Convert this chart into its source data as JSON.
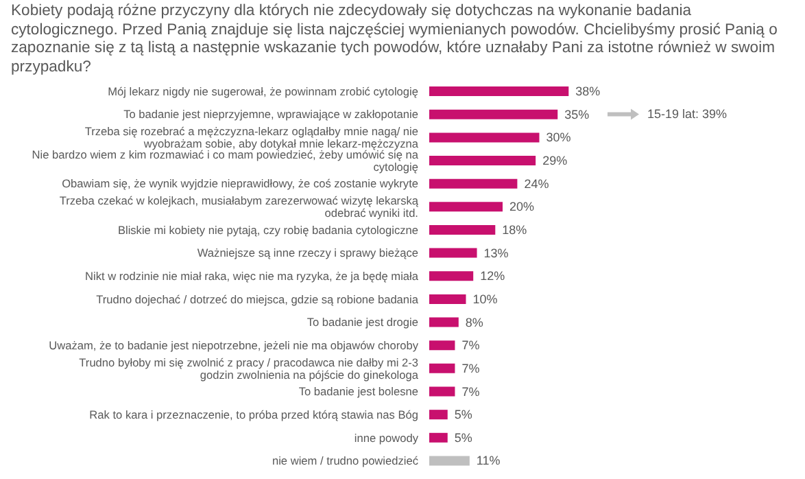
{
  "chart_data": {
    "type": "bar",
    "orientation": "horizontal",
    "title": "Kobiety podają różne przyczyny dla których nie zdecydowały się dotychczas na wykonanie badania cytologicznego. Przed Panią znajduje się lista najczęściej wymienianych powodów. Chcielibyśmy prosić Panią o zapoznanie się z tą listą a następnie wskazanie tych powodów, które uznałaby Pani za istotne również w swoim przypadku?",
    "categories": [
      "Mój lekarz nigdy nie sugerował, że powinnam zrobić cytologię",
      "To badanie jest nieprzyjemne, wprawiające w zakłopotanie",
      "Trzeba się rozebrać a mężczyzna-lekarz oglądałby mnie nagą/ nie wyobrażam sobie, aby dotykał mnie lekarz-mężczyzna",
      "Nie bardzo wiem z kim rozmawiać i co mam powiedzieć, żeby umówić się na cytologię",
      "Obawiam się, że wynik wyjdzie nieprawidłowy, że coś zostanie wykryte",
      "Trzeba czekać w kolejkach, musiałabym zarezerwować wizytę lekarską odebrać wyniki itd.",
      "Bliskie mi kobiety nie pytają, czy robię badania cytologiczne",
      "Ważniejsze są inne rzeczy i sprawy bieżące",
      "Nikt w rodzinie nie miał raka, więc nie ma ryzyka, że ja będę miała",
      "Trudno dojechać / dotrzeć do miejsca, gdzie są robione badania",
      "To badanie jest drogie",
      "Uważam, że to badanie jest niepotrzebne, jeżeli nie ma objawów choroby",
      "Trudno byłoby mi się zwolnić z pracy / pracodawca nie dałby mi 2-3 godzin zwolnienia na pójście do ginekologa",
      "To badanie jest bolesne",
      "Rak to kara i przeznaczenie, to próba przed którą stawia nas Bóg",
      "inne powody",
      "nie wiem / trudno powiedzieć"
    ],
    "values": [
      38,
      35,
      30,
      29,
      24,
      20,
      18,
      13,
      12,
      10,
      8,
      7,
      7,
      7,
      5,
      5,
      11
    ],
    "value_labels": [
      "38%",
      "35%",
      "30%",
      "29%",
      "24%",
      "20%",
      "18%",
      "13%",
      "12%",
      "10%",
      "8%",
      "7%",
      "7%",
      "7%",
      "5%",
      "5%",
      "11%"
    ],
    "colors": [
      "#c8106e",
      "#c8106e",
      "#c8106e",
      "#c8106e",
      "#c8106e",
      "#c8106e",
      "#c8106e",
      "#c8106e",
      "#c8106e",
      "#c8106e",
      "#c8106e",
      "#c8106e",
      "#c8106e",
      "#c8106e",
      "#c8106e",
      "#c8106e",
      "#bfbfbf"
    ],
    "tick_labels": "y",
    "grid": false,
    "legend": false,
    "annotations": [
      "15-19 lat: 39%"
    ]
  }
}
